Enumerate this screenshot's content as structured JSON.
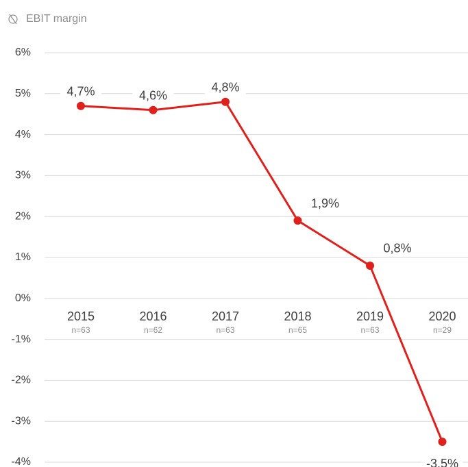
{
  "chart_data": {
    "type": "line",
    "title": "EBIT margin",
    "categories": [
      "2015",
      "2016",
      "2017",
      "2018",
      "2019",
      "2020"
    ],
    "sample_sizes": [
      "n=63",
      "n=62",
      "n=63",
      "n=65",
      "n=63",
      "n=29"
    ],
    "series": [
      {
        "name": "EBIT margin",
        "color": "#e0201b",
        "values": [
          4.7,
          4.6,
          4.8,
          1.9,
          0.8,
          -3.5
        ],
        "value_labels": [
          "4,7%",
          "4,6%",
          "4,8%",
          "1,9%",
          "0,8%",
          "-3.5%"
        ]
      }
    ],
    "ylim": [
      -4,
      6
    ],
    "yticks": [
      {
        "value": -4,
        "label": "-4%"
      },
      {
        "value": -3,
        "label": "-3%"
      },
      {
        "value": -2,
        "label": "-2%"
      },
      {
        "value": -1,
        "label": "-1%"
      },
      {
        "value": 0,
        "label": "0%"
      },
      {
        "value": 1,
        "label": "1%"
      },
      {
        "value": 2,
        "label": "2%"
      },
      {
        "value": 3,
        "label": "3%"
      },
      {
        "value": 4,
        "label": "4%"
      },
      {
        "value": 5,
        "label": "5%"
      },
      {
        "value": 6,
        "label": "6%"
      }
    ],
    "grid": true
  }
}
